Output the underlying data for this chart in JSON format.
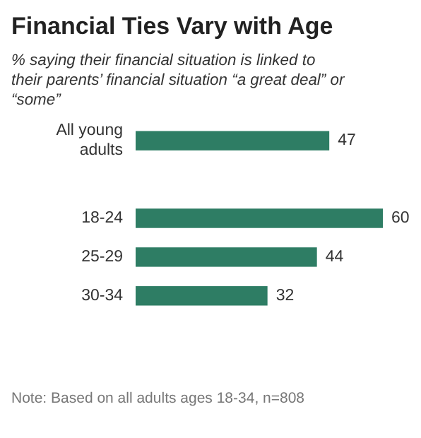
{
  "chart_data": {
    "type": "bar",
    "orientation": "horizontal",
    "title": "Financial Ties Vary with Age",
    "subtitle": "% saying their financial situation is linked to their parents’ financial situation “a great deal” or “some”",
    "categories": [
      "All young adults",
      null,
      "18-24",
      "25-29",
      "30-34"
    ],
    "values": [
      47,
      null,
      60,
      44,
      32
    ],
    "color": "#2e7d64",
    "data_labels": true,
    "annotations": [
      "Note: Based on all adults ages 18-34, n=808"
    ]
  }
}
